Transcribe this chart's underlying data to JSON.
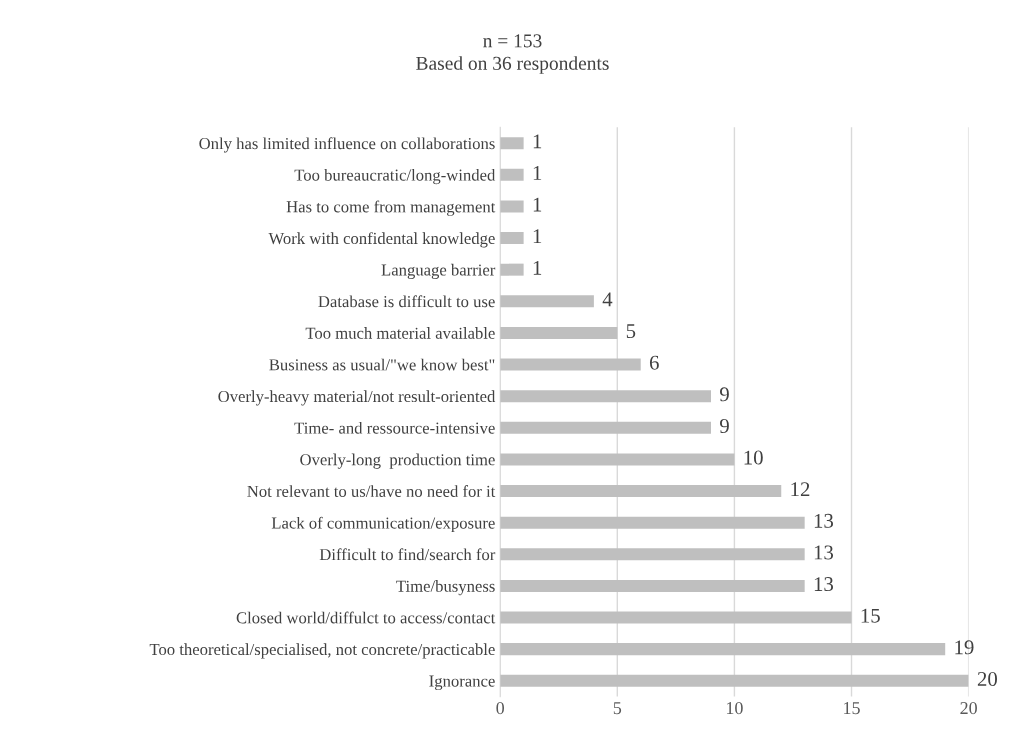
{
  "chart_data": {
    "type": "bar",
    "orientation": "horizontal",
    "title": "n = 153",
    "subtitle": "Based on 36 respondents",
    "categories": [
      "Only has limited influence on collaborations",
      "Too bureaucratic/long-winded",
      "Has to come from management",
      "Work with confidental knowledge",
      "Language barrier",
      "Database is difficult to use",
      "Too much material available",
      "Business as usual/\"we know best\"",
      "Overly-heavy material/not result-oriented",
      "Time- and ressource-intensive",
      "Overly-long  production time",
      "Not relevant to us/have no need for it",
      "Lack of communication/exposure",
      "Difficult to find/search for",
      "Time/busyness",
      "Closed world/diffulct to access/contact",
      "Too theoretical/specialised, not concrete/practicable",
      "Ignorance"
    ],
    "values": [
      1,
      1,
      1,
      1,
      1,
      4,
      5,
      6,
      9,
      9,
      10,
      12,
      13,
      13,
      13,
      15,
      19,
      20
    ],
    "color": "#bfbfbf",
    "xlim": [
      0,
      20
    ],
    "xticks": [
      0,
      5,
      10,
      15,
      20
    ],
    "grid": "x",
    "data_labels": true
  }
}
